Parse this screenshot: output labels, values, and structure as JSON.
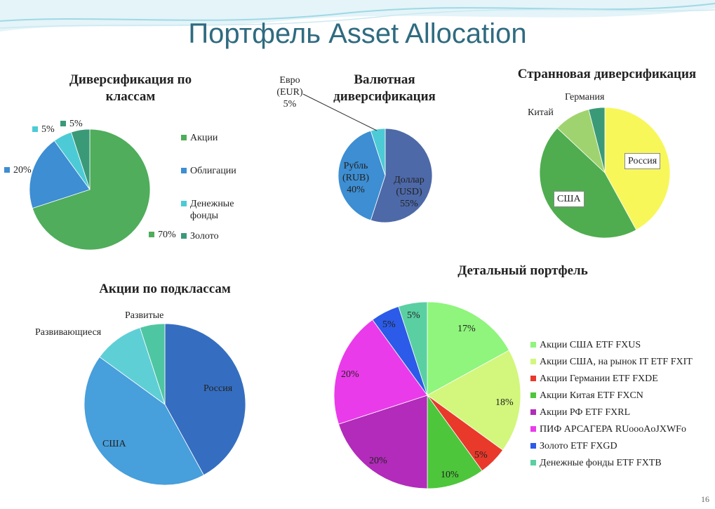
{
  "title": "Портфель Asset Allocation",
  "page_number": "16",
  "chart_data": [
    {
      "type": "pie",
      "title": "Диверсификация по классам",
      "categories": [
        "Акции",
        "Облигации",
        "Денежные фонды",
        "Золото"
      ],
      "values": [
        70,
        20,
        5,
        5
      ],
      "value_labels": [
        "70%",
        "20%",
        "5%",
        "5%"
      ],
      "colors": [
        "#4fad5b",
        "#3d8ed2",
        "#4ccbd6",
        "#3a9a78"
      ],
      "legend": "right"
    },
    {
      "type": "pie",
      "title": "Валютная диверсификация",
      "categories": [
        "Доллар (USD)",
        "Рубль (RUB)",
        "Евро (EUR)"
      ],
      "values": [
        55,
        40,
        5
      ],
      "value_labels": [
        "55%",
        "40%",
        "5%"
      ],
      "colors": [
        "#4d69a8",
        "#3d8ed2",
        "#4ccbd6"
      ]
    },
    {
      "type": "pie",
      "title": "Странновая диверсификация",
      "categories": [
        "Россия",
        "США",
        "Китай",
        "Германия"
      ],
      "values": [
        42,
        45,
        9,
        4
      ],
      "colors": [
        "#f7f75a",
        "#4fad4f",
        "#9fd36f",
        "#3a9a78"
      ]
    },
    {
      "type": "pie",
      "title": "Акции по подклассам",
      "categories": [
        "Россия",
        "США",
        "Развивающиеся",
        "Развитые"
      ],
      "values": [
        42,
        43,
        10,
        5
      ],
      "colors": [
        "#356ec0",
        "#479fdb",
        "#5fcfd6",
        "#4fc6a2"
      ]
    },
    {
      "type": "pie",
      "title": "Детальный портфель",
      "categories": [
        "Акции США ETF FXUS",
        "Акции США, на рынок IT ETF FXIT",
        "Акции Германии ETF FXDE",
        "Акции Китая ETF FXCN",
        "Акции РФ ETF FXRL",
        "ПИФ АРСАГЕРА RUoooAoJXWFo",
        "Золото ETF FXGD",
        "Денежные фонды ETF FXTB"
      ],
      "values": [
        17,
        18,
        5,
        10,
        20,
        20,
        5,
        5
      ],
      "value_labels": [
        "17%",
        "18%",
        "5%",
        "10%",
        "20%",
        "20%",
        "5%",
        "5%"
      ],
      "colors": [
        "#8ff57c",
        "#d2f77c",
        "#e8392b",
        "#4dc63b",
        "#b22bba",
        "#ea3bea",
        "#2b5be8",
        "#5ad0a2"
      ],
      "legend": "right"
    }
  ]
}
